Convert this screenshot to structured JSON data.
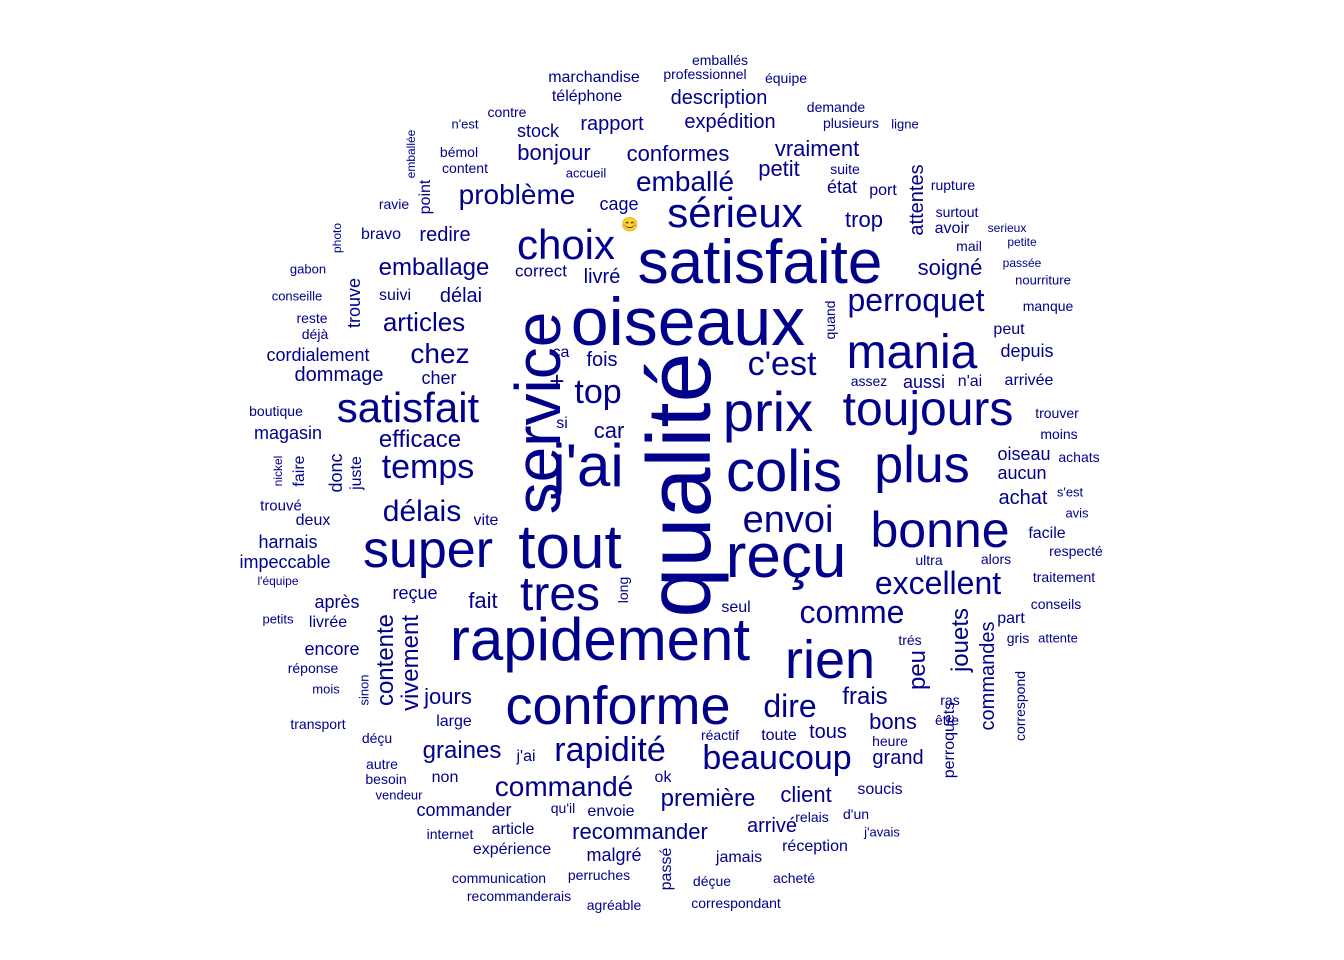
{
  "color": "#00008b",
  "words": [
    {
      "text": "qualité"
    },
    {
      "text": "service"
    },
    {
      "text": "oiseaux"
    },
    {
      "text": "satisfaite"
    },
    {
      "text": "j'ai"
    },
    {
      "text": "reçu"
    },
    {
      "text": "rapidement"
    },
    {
      "text": "tout"
    },
    {
      "text": "super"
    },
    {
      "text": "conforme"
    },
    {
      "text": "colis"
    },
    {
      "text": "prix"
    },
    {
      "text": "plus"
    },
    {
      "text": "toujours"
    },
    {
      "text": "mania"
    },
    {
      "text": "rien"
    },
    {
      "text": "bonne"
    },
    {
      "text": "tres"
    },
    {
      "text": "sérieux"
    },
    {
      "text": "choix"
    },
    {
      "text": "satisfait"
    },
    {
      "text": "envoi"
    },
    {
      "text": "c'est"
    },
    {
      "text": "beaucoup"
    },
    {
      "text": "rapidité"
    },
    {
      "text": "temps"
    },
    {
      "text": "perroquet"
    },
    {
      "text": "excellent"
    },
    {
      "text": "comme"
    },
    {
      "text": "commandé"
    },
    {
      "text": "emballé"
    },
    {
      "text": "problème"
    },
    {
      "text": "top"
    },
    {
      "text": "chez"
    },
    {
      "text": "dire"
    },
    {
      "text": "délais"
    },
    {
      "text": "articles"
    },
    {
      "text": "emballage"
    },
    {
      "text": "conformes"
    },
    {
      "text": "bonjour"
    },
    {
      "text": "première"
    },
    {
      "text": "recommander"
    },
    {
      "text": "efficace"
    },
    {
      "text": "graines"
    },
    {
      "text": "frais"
    },
    {
      "text": "contente"
    },
    {
      "text": "vivement"
    },
    {
      "text": "jouets"
    },
    {
      "text": "peu"
    },
    {
      "text": "commandes"
    },
    {
      "text": "petit"
    },
    {
      "text": "vraiment"
    },
    {
      "text": "trop"
    },
    {
      "text": "soigné"
    },
    {
      "text": "attentes"
    },
    {
      "text": "fait"
    },
    {
      "text": "jours"
    },
    {
      "text": "bons"
    },
    {
      "text": "client"
    },
    {
      "text": "arrivé"
    },
    {
      "text": "expédition"
    },
    {
      "text": "description"
    },
    {
      "text": "rapport"
    },
    {
      "text": "stock"
    },
    {
      "text": "téléphone"
    },
    {
      "text": "marchandise"
    },
    {
      "text": "professionnel"
    },
    {
      "text": "emballés"
    },
    {
      "text": "équipe"
    },
    {
      "text": "demande"
    },
    {
      "text": "plusieurs"
    },
    {
      "text": "ligne"
    },
    {
      "text": "n'est"
    },
    {
      "text": "contre"
    },
    {
      "text": "bémol"
    },
    {
      "text": "content"
    },
    {
      "text": "accueil"
    },
    {
      "text": "emballée"
    },
    {
      "text": "point"
    },
    {
      "text": "ravie"
    },
    {
      "text": "cage"
    },
    {
      "text": "redire"
    },
    {
      "text": "bravo"
    },
    {
      "text": "photo"
    },
    {
      "text": "gabon"
    },
    {
      "text": "conseille"
    },
    {
      "text": "reste"
    },
    {
      "text": "déjà"
    },
    {
      "text": "trouve"
    },
    {
      "text": "suivi"
    },
    {
      "text": "délai"
    },
    {
      "text": "livré"
    },
    {
      "text": "correct"
    },
    {
      "text": "cordialement"
    },
    {
      "text": "dommage"
    },
    {
      "text": "cher"
    },
    {
      "text": "ça"
    },
    {
      "text": "fois"
    },
    {
      "text": "+"
    },
    {
      "text": "car"
    },
    {
      "text": "si"
    },
    {
      "text": "magasin"
    },
    {
      "text": "boutique"
    },
    {
      "text": "donc"
    },
    {
      "text": "juste"
    },
    {
      "text": "nickel"
    },
    {
      "text": "faire"
    },
    {
      "text": "trouvé"
    },
    {
      "text": "deux"
    },
    {
      "text": "vite"
    },
    {
      "text": "harnais"
    },
    {
      "text": "impeccable"
    },
    {
      "text": "l'équipe"
    },
    {
      "text": "après"
    },
    {
      "text": "reçue"
    },
    {
      "text": "livrée"
    },
    {
      "text": "petits"
    },
    {
      "text": "encore"
    },
    {
      "text": "réponse"
    },
    {
      "text": "mois"
    },
    {
      "text": "sinon"
    },
    {
      "text": "transport"
    },
    {
      "text": "large"
    },
    {
      "text": "déçu"
    },
    {
      "text": "autre"
    },
    {
      "text": "besoin"
    },
    {
      "text": "vendeur"
    },
    {
      "text": "non"
    },
    {
      "text": "j'ai"
    },
    {
      "text": "ok"
    },
    {
      "text": "commander"
    },
    {
      "text": "qu'il"
    },
    {
      "text": "envoie"
    },
    {
      "text": "internet"
    },
    {
      "text": "article"
    },
    {
      "text": "expérience"
    },
    {
      "text": "malgré"
    },
    {
      "text": "communication"
    },
    {
      "text": "perruches"
    },
    {
      "text": "recommanderais"
    },
    {
      "text": "agréable"
    },
    {
      "text": "passé"
    },
    {
      "text": "déçue"
    },
    {
      "text": "correspondant"
    },
    {
      "text": "acheté"
    },
    {
      "text": "jamais"
    },
    {
      "text": "réception"
    },
    {
      "text": "relais"
    },
    {
      "text": "d'un"
    },
    {
      "text": "j'avais"
    },
    {
      "text": "soucis"
    },
    {
      "text": "grand"
    },
    {
      "text": "heure"
    },
    {
      "text": "réactif"
    },
    {
      "text": "toute"
    },
    {
      "text": "tous"
    },
    {
      "text": "long"
    },
    {
      "text": "seul"
    },
    {
      "text": "ultra"
    },
    {
      "text": "perroquets"
    },
    {
      "text": "être"
    },
    {
      "text": "ras"
    },
    {
      "text": "trés"
    },
    {
      "text": "part"
    },
    {
      "text": "gris"
    },
    {
      "text": "attente"
    },
    {
      "text": "correspond"
    },
    {
      "text": "conseils"
    },
    {
      "text": "traitement"
    },
    {
      "text": "alors"
    },
    {
      "text": "respecté"
    },
    {
      "text": "facile"
    },
    {
      "text": "avis"
    },
    {
      "text": "s'est"
    },
    {
      "text": "achat"
    },
    {
      "text": "achats"
    },
    {
      "text": "aucun"
    },
    {
      "text": "oiseau"
    },
    {
      "text": "moins"
    },
    {
      "text": "trouver"
    },
    {
      "text": "arrivée"
    },
    {
      "text": "n'ai"
    },
    {
      "text": "aussi"
    },
    {
      "text": "assez"
    },
    {
      "text": "depuis"
    },
    {
      "text": "peut"
    },
    {
      "text": "quand"
    },
    {
      "text": "manque"
    },
    {
      "text": "nourriture"
    },
    {
      "text": "passée"
    },
    {
      "text": "petite"
    },
    {
      "text": "serieux"
    },
    {
      "text": "mail"
    },
    {
      "text": "avoir"
    },
    {
      "text": "surtout"
    },
    {
      "text": "rupture"
    },
    {
      "text": "port"
    },
    {
      "text": "état"
    },
    {
      "text": "suite"
    },
    {
      "text": "😊"
    }
  ]
}
